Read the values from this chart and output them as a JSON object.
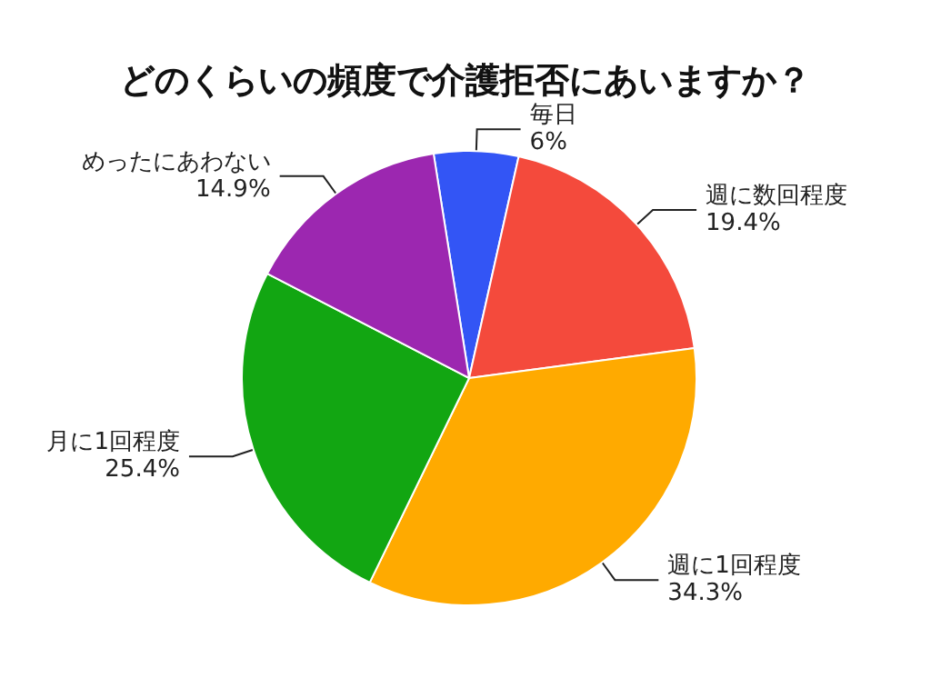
{
  "chart_data": {
    "type": "pie",
    "title": "どのくらいの頻度で介護拒否にあいますか？",
    "categories": [
      "毎日",
      "週に数回程度",
      "週に1回程度",
      "月に1回程度",
      "めったにあわない"
    ],
    "values": [
      6,
      19.4,
      34.3,
      25.4,
      14.9
    ],
    "value_labels": [
      "6%",
      "19.4%",
      "34.3%",
      "25.4%",
      "14.9%"
    ],
    "colors": [
      "#3355f5",
      "#f44a3c",
      "#ffaa00",
      "#12a612",
      "#9c27b0"
    ],
    "legend": false
  }
}
